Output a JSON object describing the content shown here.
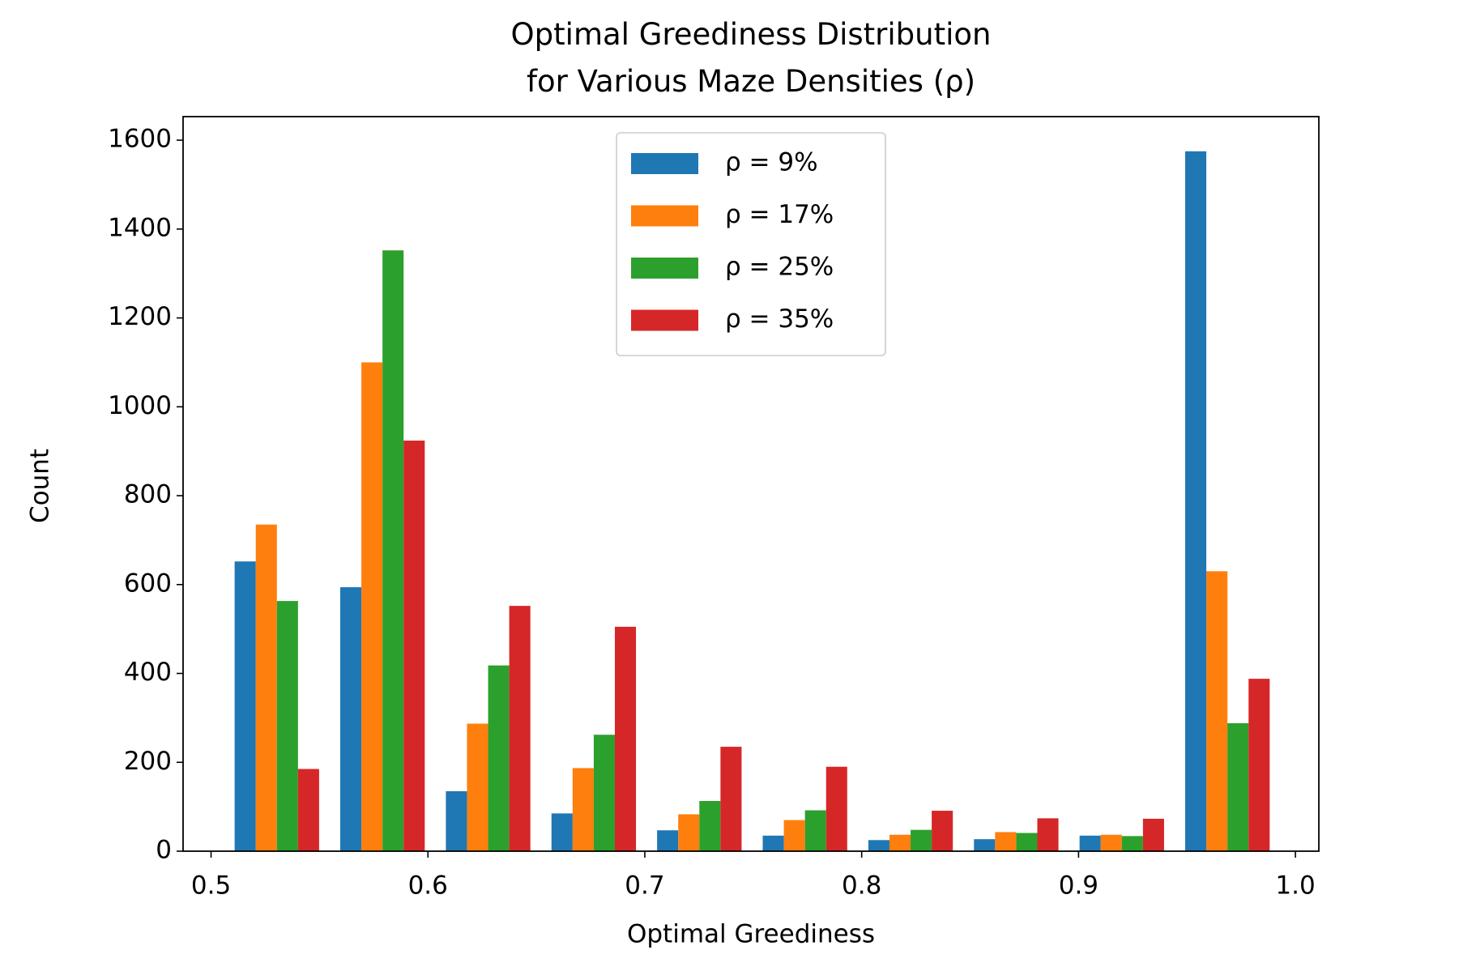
{
  "chart_data": {
    "type": "histogram",
    "title": "Optimal Greediness Distribution\nfor Various Maze Densities (ρ)",
    "x_label": "Optimal Greediness",
    "y_label": "Count",
    "bins": [
      0.506,
      0.5547,
      0.6034,
      0.6521,
      0.7008,
      0.7495,
      0.7982,
      0.8469,
      0.8956,
      0.9443,
      0.993
    ],
    "series": [
      {
        "name": "ρ = 9%",
        "color": "#1f77b4",
        "values": [
          652,
          594,
          135,
          85,
          47,
          35,
          25,
          27,
          35,
          1575
        ]
      },
      {
        "name": "ρ = 17%",
        "color": "#ff7f0e",
        "values": [
          735,
          1100,
          287,
          187,
          83,
          70,
          37,
          43,
          37,
          630
        ]
      },
      {
        "name": "ρ = 25%",
        "color": "#2ca02c",
        "values": [
          563,
          1352,
          418,
          262,
          113,
          92,
          48,
          41,
          34,
          288
        ]
      },
      {
        "name": "ρ = 35%",
        "color": "#d62728",
        "values": [
          185,
          924,
          552,
          505,
          235,
          190,
          91,
          74,
          73,
          388
        ]
      }
    ],
    "xlim": [
      0.4871,
      1.0108
    ],
    "xticks": [
      0.5,
      0.6,
      0.7,
      0.8,
      0.9,
      {
        "value": 1,
        "label": "1.0"
      }
    ],
    "ylim": [
      0,
      1653
    ],
    "yticks": [
      0,
      200,
      400,
      600,
      800,
      1000,
      1200,
      1400,
      1600
    ],
    "legend": "upper center",
    "grid": false
  }
}
